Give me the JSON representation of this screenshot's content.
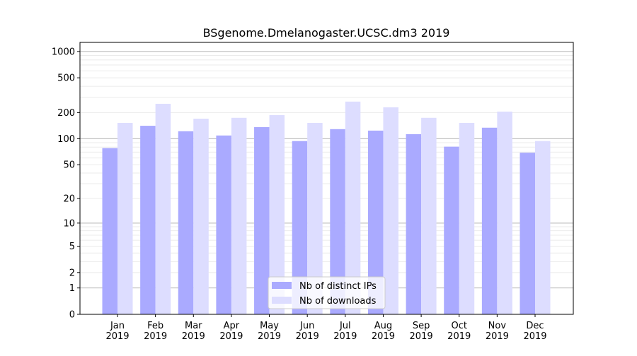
{
  "chart_data": {
    "type": "bar",
    "title": "BSgenome.Dmelanogaster.UCSC.dm3 2019",
    "xlabel": "",
    "ylabel": "",
    "categories": [
      "Jan\n2019",
      "Feb\n2019",
      "Mar\n2019",
      "Apr\n2019",
      "May\n2019",
      "Jun\n2019",
      "Jul\n2019",
      "Aug\n2019",
      "Sep\n2019",
      "Oct\n2019",
      "Nov\n2019",
      "Dec\n2019"
    ],
    "yscale": "symlog (log10(1+y))",
    "ylim": [
      0,
      1270
    ],
    "yticks": [
      0,
      1,
      2,
      5,
      10,
      20,
      50,
      100,
      200,
      500,
      1000
    ],
    "ytick_labels": [
      "0",
      "1",
      "2",
      "5",
      "10",
      "20",
      "50",
      "100",
      "200",
      "500",
      "1000"
    ],
    "grid": true,
    "legend_position": "bottom-center",
    "series": [
      {
        "name": "Nb of distinct IPs",
        "color": "#aaaaff",
        "values": [
          78,
          141,
          122,
          109,
          136,
          94,
          129,
          124,
          113,
          81,
          134,
          69
        ]
      },
      {
        "name": "Nb of downloads",
        "color": "#ddddff",
        "values": [
          152,
          252,
          170,
          174,
          187,
          152,
          267,
          230,
          174,
          152,
          205,
          94
        ]
      }
    ]
  }
}
